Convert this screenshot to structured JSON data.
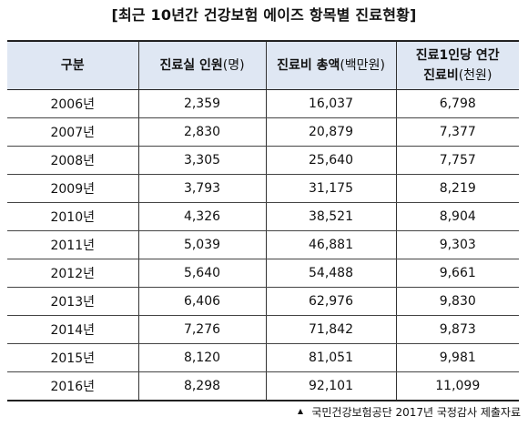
{
  "title": "[최근 10년간 건강보험 에이즈 항목별 진료현황]",
  "table": {
    "headers": {
      "col0": "구분",
      "col1": {
        "label": "진료실 인원",
        "unit": "(명)"
      },
      "col2": {
        "label": "진료비 총액",
        "unit": "(백만원)"
      },
      "col3": {
        "line1": "진료1인당 연간",
        "line2_label": "진료비",
        "line2_unit": "(천원)"
      }
    },
    "rows": [
      {
        "year": "2006년",
        "patients": "2,359",
        "total_cost": "16,037",
        "cost_per_patient": "6,798"
      },
      {
        "year": "2007년",
        "patients": "2,830",
        "total_cost": "20,879",
        "cost_per_patient": "7,377"
      },
      {
        "year": "2008년",
        "patients": "3,305",
        "total_cost": "25,640",
        "cost_per_patient": "7,757"
      },
      {
        "year": "2009년",
        "patients": "3,793",
        "total_cost": "31,175",
        "cost_per_patient": "8,219"
      },
      {
        "year": "2010년",
        "patients": "4,326",
        "total_cost": "38,521",
        "cost_per_patient": "8,904"
      },
      {
        "year": "2011년",
        "patients": "5,039",
        "total_cost": "46,881",
        "cost_per_patient": "9,303"
      },
      {
        "year": "2012년",
        "patients": "5,640",
        "total_cost": "54,488",
        "cost_per_patient": "9,661"
      },
      {
        "year": "2013년",
        "patients": "6,406",
        "total_cost": "62,976",
        "cost_per_patient": "9,830"
      },
      {
        "year": "2014년",
        "patients": "7,276",
        "total_cost": "71,842",
        "cost_per_patient": "9,873"
      },
      {
        "year": "2015년",
        "patients": "8,120",
        "total_cost": "81,051",
        "cost_per_patient": "9,981"
      },
      {
        "year": "2016년",
        "patients": "8,298",
        "total_cost": "92,101",
        "cost_per_patient": "11,099"
      }
    ]
  },
  "source": {
    "icon": "triangle-bullet-icon",
    "text": "국민건강보험공단 2017년 국정감사 제출자료"
  },
  "colors": {
    "header_background": "#dfe7f3",
    "border": "#222222",
    "text": "#111111"
  }
}
